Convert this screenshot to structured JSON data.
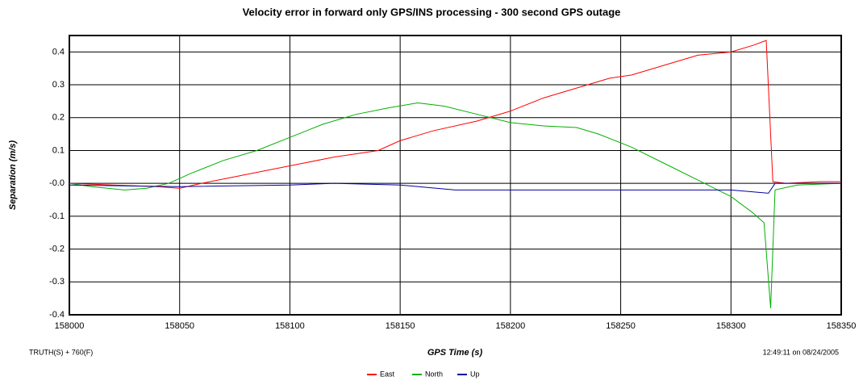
{
  "chart_data": {
    "type": "line",
    "title": "Velocity error in forward only GPS/INS processing - 300 second GPS outage",
    "xlabel": "GPS Time (s)",
    "ylabel": "Separation (m/s)",
    "footer_left": "TRUTH(S) + 760(F)",
    "footer_right": "12:49:11 on 08/24/2005",
    "xlim": [
      158000,
      158350
    ],
    "xticks": [
      158000,
      158050,
      158100,
      158150,
      158200,
      158250,
      158300,
      158350
    ],
    "ylim": [
      -0.4,
      0.45
    ],
    "yticks": [
      -0.4,
      -0.3,
      -0.2,
      -0.1,
      {
        "value": 0,
        "label": "-0.0"
      },
      0.1,
      0.2,
      0.3,
      0.4
    ],
    "grid": true,
    "legend": "bottom",
    "series": [
      {
        "name": "East",
        "color": "#ff0000",
        "x": [
          158000,
          158040,
          158050,
          158060,
          158075,
          158090,
          158105,
          158120,
          158140,
          158150,
          158165,
          158185,
          158200,
          158215,
          158230,
          158245,
          158255,
          158270,
          158285,
          158300,
          158310,
          158316,
          158319,
          158325,
          158340,
          158350
        ],
        "values": [
          0,
          -0.01,
          -0.015,
          0,
          0.02,
          0.04,
          0.06,
          0.08,
          0.1,
          0.13,
          0.16,
          0.19,
          0.22,
          0.26,
          0.29,
          0.32,
          0.33,
          0.36,
          0.39,
          0.4,
          0.42,
          0.435,
          0.005,
          0,
          0.005,
          0.005
        ]
      },
      {
        "name": "North",
        "color": "#00b000",
        "x": [
          158000,
          158010,
          158025,
          158035,
          158045,
          158055,
          158070,
          158085,
          158100,
          158115,
          158130,
          158145,
          158158,
          158170,
          158185,
          158200,
          158215,
          158230,
          158240,
          158255,
          158270,
          158285,
          158300,
          158310,
          158315,
          158318,
          158320,
          158330,
          158350
        ],
        "values": [
          0,
          -0.01,
          -0.02,
          -0.015,
          0,
          0.03,
          0.07,
          0.1,
          0.14,
          0.18,
          0.21,
          0.23,
          0.245,
          0.235,
          0.21,
          0.185,
          0.175,
          0.17,
          0.15,
          0.11,
          0.06,
          0.01,
          -0.04,
          -0.09,
          -0.12,
          -0.38,
          -0.02,
          -0.005,
          0
        ]
      },
      {
        "name": "Up",
        "color": "#0000a0",
        "x": [
          158000,
          158050,
          158100,
          158120,
          158150,
          158175,
          158250,
          158300,
          158317,
          158320,
          158350
        ],
        "values": [
          -0.005,
          -0.01,
          -0.005,
          0,
          -0.005,
          -0.02,
          -0.02,
          -0.02,
          -0.03,
          0,
          0
        ]
      }
    ]
  }
}
